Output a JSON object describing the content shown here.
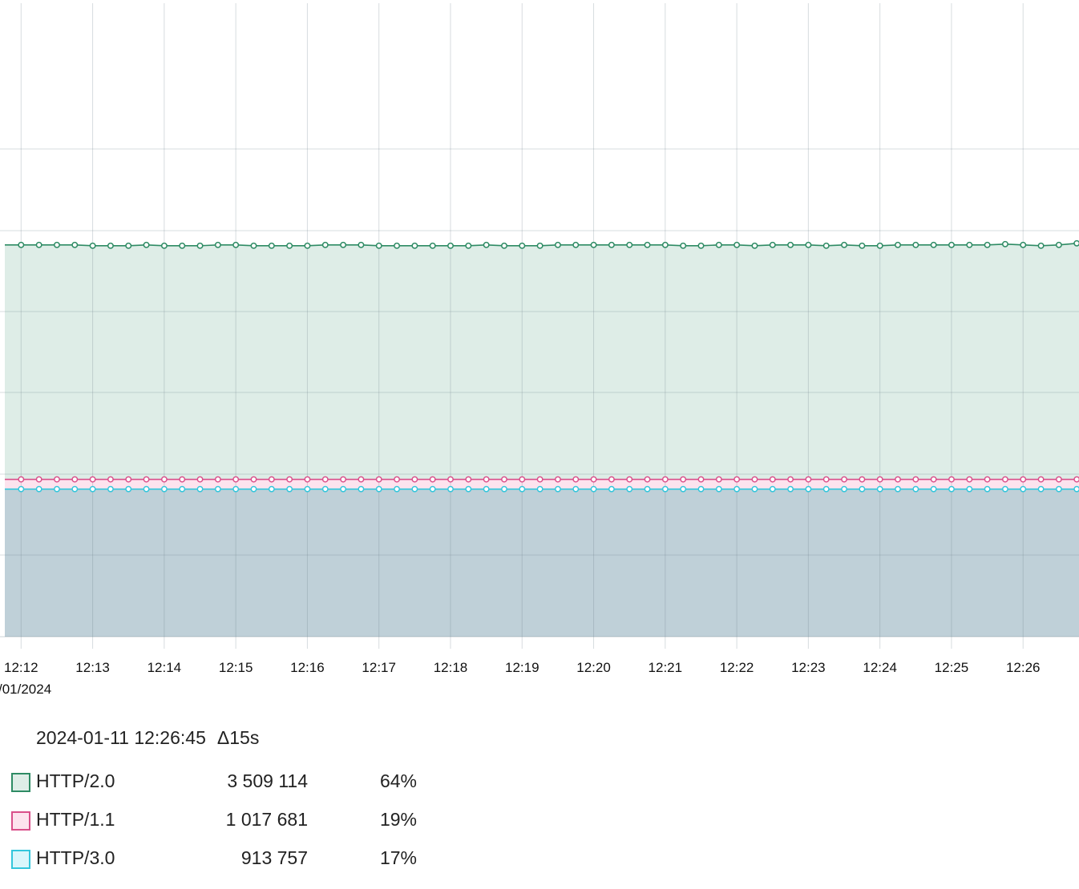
{
  "chart_data": {
    "type": "area",
    "stacked": true,
    "title": "",
    "xlabel": "",
    "ylabel": "",
    "grid": true,
    "x_ticks": [
      "12:12",
      "12:13",
      "12:14",
      "12:15",
      "12:16",
      "12:17",
      "12:18",
      "12:19",
      "12:20",
      "12:21",
      "12:22",
      "12:23",
      "12:24",
      "12:25",
      "12:26"
    ],
    "date_label": "/01/2024",
    "x_start": "12:11:45",
    "x_end": "12:26:45",
    "step_seconds": 15,
    "series": [
      {
        "name": "HTTP/2.0",
        "color": "#2e8b64",
        "fill": "#deede7",
        "values": [
          2.89,
          2.89,
          2.89,
          2.89,
          2.88,
          2.88,
          2.88,
          2.89,
          2.88,
          2.88,
          2.88,
          2.89,
          2.89,
          2.88,
          2.88,
          2.88,
          2.88,
          2.89,
          2.89,
          2.89,
          2.88,
          2.88,
          2.88,
          2.88,
          2.88,
          2.88,
          2.89,
          2.88,
          2.88,
          2.88,
          2.89,
          2.89,
          2.89,
          2.89,
          2.89,
          2.89,
          2.89,
          2.88,
          2.88,
          2.89,
          2.89,
          2.88,
          2.89,
          2.89,
          2.89,
          2.88,
          2.89,
          2.88,
          2.88,
          2.89,
          2.89,
          2.89,
          2.89,
          2.89,
          2.89,
          2.9,
          2.89,
          2.88,
          2.89,
          2.91,
          2.89,
          2.89
        ]
      },
      {
        "name": "HTTP/1.1",
        "color": "#d94f8a",
        "fill": "#fde3ee",
        "values": [
          0.12,
          0.12,
          0.12,
          0.12,
          0.12,
          0.12,
          0.12,
          0.12,
          0.12,
          0.12,
          0.12,
          0.12,
          0.12,
          0.12,
          0.12,
          0.12,
          0.12,
          0.12,
          0.12,
          0.12,
          0.12,
          0.12,
          0.12,
          0.12,
          0.12,
          0.12,
          0.12,
          0.12,
          0.12,
          0.12,
          0.12,
          0.12,
          0.12,
          0.12,
          0.12,
          0.12,
          0.12,
          0.12,
          0.12,
          0.12,
          0.12,
          0.12,
          0.12,
          0.12,
          0.12,
          0.12,
          0.12,
          0.12,
          0.12,
          0.12,
          0.12,
          0.12,
          0.12,
          0.12,
          0.12,
          0.12,
          0.12,
          0.12,
          0.12,
          0.12,
          0.12,
          0.12
        ]
      },
      {
        "name": "HTTP/3.0",
        "color": "#33c6dc",
        "fill": "#bfd0d8",
        "values": [
          1.82,
          1.82,
          1.82,
          1.82,
          1.82,
          1.82,
          1.82,
          1.82,
          1.82,
          1.82,
          1.82,
          1.82,
          1.82,
          1.82,
          1.82,
          1.82,
          1.82,
          1.82,
          1.82,
          1.82,
          1.82,
          1.82,
          1.82,
          1.82,
          1.82,
          1.82,
          1.82,
          1.82,
          1.82,
          1.82,
          1.82,
          1.82,
          1.82,
          1.82,
          1.82,
          1.82,
          1.82,
          1.82,
          1.82,
          1.82,
          1.82,
          1.82,
          1.82,
          1.82,
          1.82,
          1.82,
          1.82,
          1.82,
          1.82,
          1.82,
          1.82,
          1.82,
          1.82,
          1.82,
          1.82,
          1.82,
          1.82,
          1.82,
          1.82,
          1.82,
          1.82,
          1.82
        ]
      }
    ],
    "ylim": [
      0,
      7.8
    ]
  },
  "legend": {
    "timestamp": "2024-01-11 12:26:45",
    "delta": "Δ15s",
    "items": [
      {
        "name": "HTTP/2.0",
        "value": "3 509 114",
        "percent": "64%",
        "color": "#2e8b64",
        "fill": "#deede7"
      },
      {
        "name": "HTTP/1.1",
        "value": "1 017 681",
        "percent": "19%",
        "color": "#d94f8a",
        "fill": "#fde3ee"
      },
      {
        "name": "HTTP/3.0",
        "value": "913 757",
        "percent": "17%",
        "color": "#33c6dc",
        "fill": "#d9f6fb"
      }
    ]
  }
}
